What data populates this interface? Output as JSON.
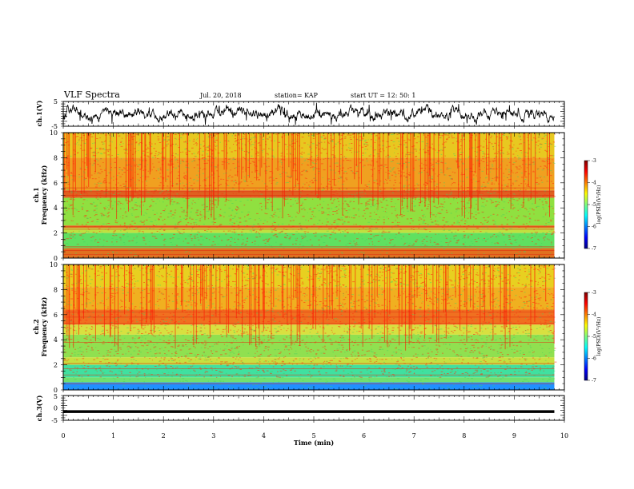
{
  "header": {
    "title": "VLF Spectra",
    "date": "Jul. 20, 2018",
    "station": "station= KAP",
    "start": "start  UT =   12: 50: 1"
  },
  "chart_data": [
    {
      "type": "line",
      "name": "ch1-waveform",
      "ylabel": "ch.1(V)",
      "ylim": [
        -5,
        5
      ],
      "yticks": [
        "5",
        "-5"
      ],
      "xlim": [
        0,
        10
      ]
    },
    {
      "type": "heatmap",
      "name": "ch1-spectrogram",
      "ylabel_top": "ch.1",
      "ylabel": "Frequency (kHz)",
      "ylim": [
        0,
        10
      ],
      "yticks": [
        "0",
        "2",
        "4",
        "6",
        "8",
        "10"
      ],
      "xlim": [
        0,
        10
      ],
      "data_extent_min": 9.8,
      "colorbar": {
        "label": "log(PSD)(V²/Hz)",
        "range": [
          -7,
          -3
        ],
        "ticks": [
          "-3",
          "-4",
          "-5",
          "-6",
          "-7"
        ]
      }
    },
    {
      "type": "heatmap",
      "name": "ch2-spectrogram",
      "ylabel_top": "ch.2",
      "ylabel": "Frequency (kHz)",
      "ylim": [
        0,
        10
      ],
      "yticks": [
        "0",
        "2",
        "4",
        "6",
        "8",
        "10"
      ],
      "xlim": [
        0,
        10
      ],
      "data_extent_min": 9.8,
      "colorbar": {
        "label": "log(PSD)(V²/Hz)",
        "range": [
          -7,
          -3
        ],
        "ticks": [
          "-3",
          "-4",
          "-5",
          "-6",
          "-7"
        ]
      }
    },
    {
      "type": "line",
      "name": "ch3-waveform",
      "ylabel": "ch.3(V)",
      "ylim": [
        -5,
        5
      ],
      "yticks": [
        "5",
        "0",
        "-5"
      ],
      "xlim": [
        0,
        10
      ],
      "value": -1.5
    }
  ],
  "xaxis": {
    "label": "Time (min)",
    "ticks": [
      "0",
      "1",
      "2",
      "3",
      "4",
      "5",
      "6",
      "7",
      "8",
      "9",
      "10"
    ]
  },
  "colors": {
    "jet": [
      "#00007f",
      "#0000ff",
      "#007fff",
      "#00ffff",
      "#7fff7f",
      "#ffff00",
      "#ff7f00",
      "#ff0000",
      "#7f0000"
    ]
  }
}
